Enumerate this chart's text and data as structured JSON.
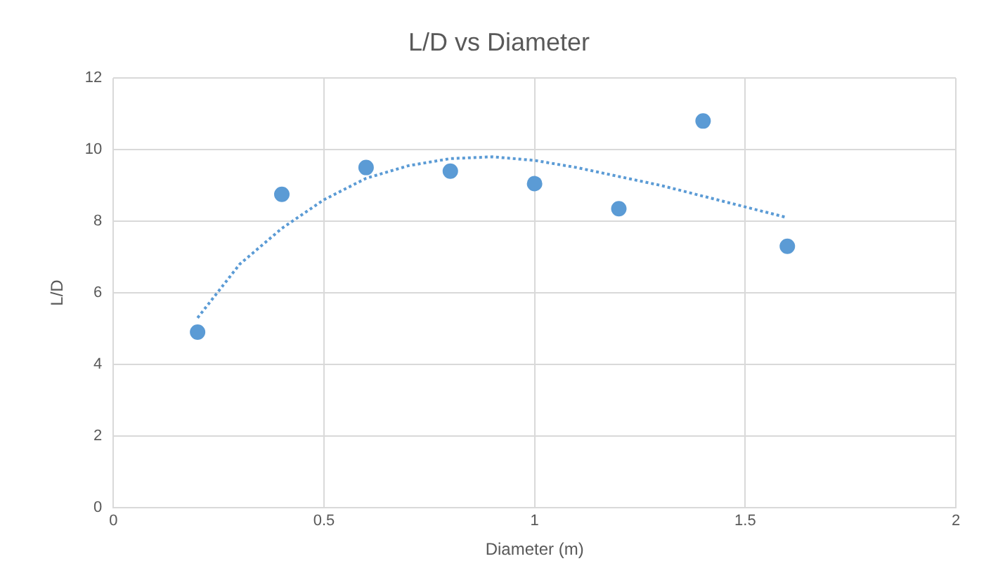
{
  "chart_data": {
    "type": "scatter",
    "title": "L/D vs Diameter",
    "xlabel": "Diameter (m)",
    "ylabel": "L/D",
    "xlim": [
      0,
      2
    ],
    "xticks": [
      0,
      0.5,
      1,
      1.5,
      2
    ],
    "ylim": [
      0,
      12
    ],
    "yticks": [
      0,
      2,
      4,
      6,
      8,
      10,
      12
    ],
    "grid": true,
    "legend": false,
    "marker": "circle",
    "series": [
      {
        "type": "scatter",
        "color": "#5b9bd5",
        "x": [
          0.2,
          0.4,
          0.6,
          0.8,
          1.0,
          1.2,
          1.4,
          1.6
        ],
        "values": [
          4.9,
          8.75,
          9.5,
          9.4,
          9.05,
          8.35,
          10.8,
          7.3
        ]
      },
      {
        "type": "line",
        "color": "#5b9bd5",
        "line_style": "dotted",
        "marker": "none",
        "x": [
          0.2,
          0.3,
          0.4,
          0.5,
          0.6,
          0.7,
          0.8,
          0.9,
          1.0,
          1.1,
          1.2,
          1.3,
          1.4,
          1.5,
          1.6
        ],
        "values": [
          5.3,
          6.8,
          7.8,
          8.6,
          9.2,
          9.55,
          9.75,
          9.8,
          9.7,
          9.5,
          9.25,
          9.0,
          8.7,
          8.4,
          8.1
        ]
      }
    ]
  }
}
